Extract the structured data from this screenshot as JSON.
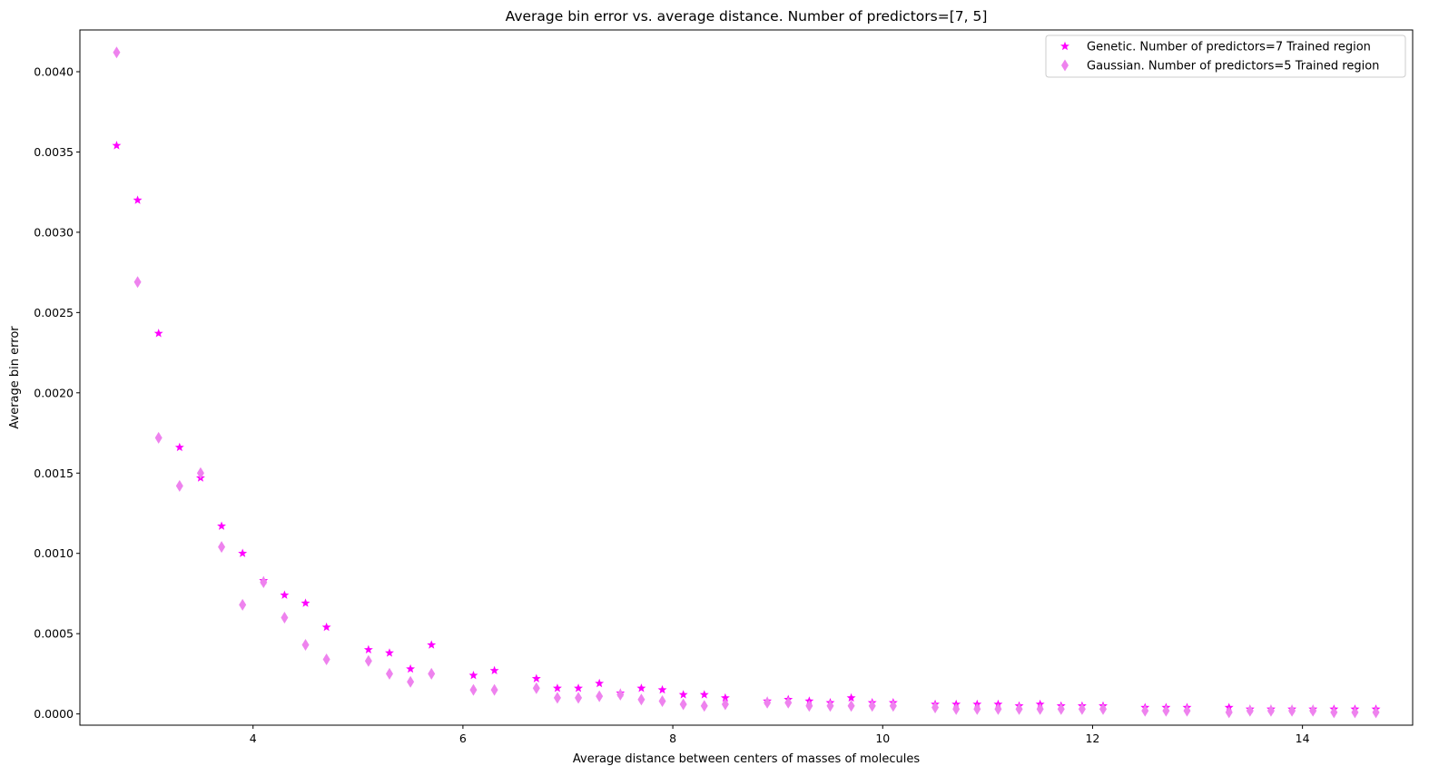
{
  "chart_data": {
    "type": "scatter",
    "title": "Average bin error vs. average distance. Number of predictors=[7, 5]",
    "xlabel": "Average distance between centers of masses of molecules",
    "ylabel": "Average bin error",
    "xlim": [
      2.35,
      15.05
    ],
    "ylim": [
      -7e-05,
      0.00426
    ],
    "xticks": [
      4,
      6,
      8,
      10,
      12,
      14
    ],
    "xtick_labels": [
      "4",
      "6",
      "8",
      "10",
      "12",
      "14"
    ],
    "yticks": [
      0.0,
      0.0005,
      0.001,
      0.0015,
      0.002,
      0.0025,
      0.003,
      0.0035,
      0.004
    ],
    "ytick_labels": [
      "0.0000",
      "0.0005",
      "0.0010",
      "0.0015",
      "0.0020",
      "0.0025",
      "0.0030",
      "0.0035",
      "0.0040"
    ],
    "grid": false,
    "legend_position": "top-right",
    "series": [
      {
        "name": "Genetic. Number of predictors=7 Trained region",
        "marker": "star",
        "color": "#ff00ff",
        "x": [
          2.7,
          2.9,
          3.1,
          3.3,
          3.5,
          3.7,
          3.9,
          4.1,
          4.3,
          4.5,
          4.7,
          5.1,
          5.3,
          5.5,
          5.7,
          6.1,
          6.3,
          6.7,
          6.9,
          7.1,
          7.3,
          7.5,
          7.7,
          7.9,
          8.1,
          8.3,
          8.5,
          8.9,
          9.1,
          9.3,
          9.5,
          9.7,
          9.9,
          10.1,
          10.5,
          10.7,
          10.9,
          11.1,
          11.3,
          11.5,
          11.7,
          11.9,
          12.1,
          12.5,
          12.7,
          12.9,
          13.3,
          13.5,
          13.7,
          13.9,
          14.1,
          14.3,
          14.5,
          14.7
        ],
        "y": [
          0.00354,
          0.0032,
          0.00237,
          0.00166,
          0.00147,
          0.00117,
          0.001,
          0.00083,
          0.00074,
          0.00069,
          0.00054,
          0.0004,
          0.00038,
          0.00028,
          0.00043,
          0.00024,
          0.00027,
          0.00022,
          0.00016,
          0.00016,
          0.00019,
          0.00013,
          0.00016,
          0.00015,
          0.00012,
          0.00012,
          0.0001,
          8e-05,
          9e-05,
          8e-05,
          7e-05,
          0.0001,
          7e-05,
          7e-05,
          6e-05,
          6e-05,
          6e-05,
          6e-05,
          5e-05,
          6e-05,
          5e-05,
          5e-05,
          5e-05,
          4e-05,
          4e-05,
          4e-05,
          4e-05,
          3e-05,
          3e-05,
          3e-05,
          3e-05,
          3e-05,
          3e-05,
          3e-05
        ]
      },
      {
        "name": "Gaussian. Number of predictors=5 Trained region",
        "marker": "thin_diamond",
        "color": "#ee82ee",
        "x": [
          2.7,
          2.9,
          3.1,
          3.3,
          3.5,
          3.7,
          3.9,
          4.1,
          4.3,
          4.5,
          4.7,
          5.1,
          5.3,
          5.5,
          5.7,
          6.1,
          6.3,
          6.7,
          6.9,
          7.1,
          7.3,
          7.5,
          7.7,
          7.9,
          8.1,
          8.3,
          8.5,
          8.9,
          9.1,
          9.3,
          9.5,
          9.7,
          9.9,
          10.1,
          10.5,
          10.7,
          10.9,
          11.1,
          11.3,
          11.5,
          11.7,
          11.9,
          12.1,
          12.5,
          12.7,
          12.9,
          13.3,
          13.5,
          13.7,
          13.9,
          14.1,
          14.3,
          14.5,
          14.7
        ],
        "y": [
          0.00412,
          0.00269,
          0.00172,
          0.00142,
          0.0015,
          0.00104,
          0.00068,
          0.00082,
          0.0006,
          0.00043,
          0.00034,
          0.00033,
          0.00025,
          0.0002,
          0.00025,
          0.00015,
          0.00015,
          0.00016,
          0.0001,
          0.0001,
          0.00011,
          0.00012,
          9e-05,
          8e-05,
          6e-05,
          5e-05,
          6e-05,
          7e-05,
          7e-05,
          5e-05,
          5e-05,
          5e-05,
          5e-05,
          5e-05,
          4e-05,
          3e-05,
          3e-05,
          3e-05,
          3e-05,
          3e-05,
          3e-05,
          3e-05,
          3e-05,
          2e-05,
          2e-05,
          2e-05,
          1e-05,
          2e-05,
          2e-05,
          2e-05,
          2e-05,
          1e-05,
          1e-05,
          1e-05
        ]
      }
    ]
  }
}
